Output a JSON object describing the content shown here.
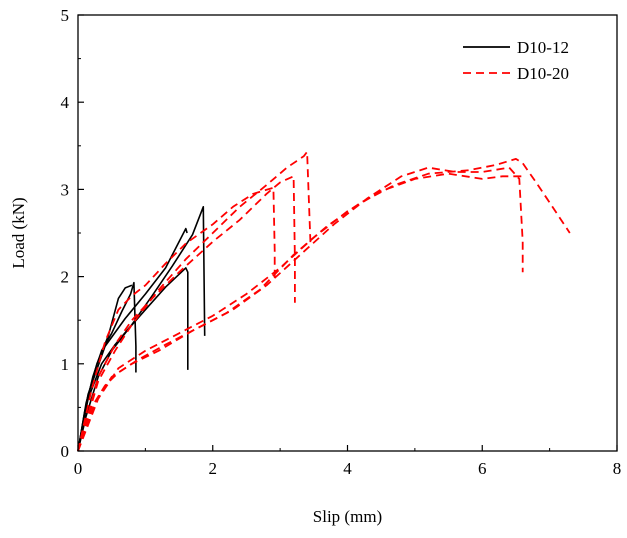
{
  "chart_data": {
    "type": "line",
    "title": "",
    "xlabel": "Slip (mm)",
    "ylabel": "Load (kN)",
    "xlim": [
      0,
      8
    ],
    "ylim": [
      0,
      5
    ],
    "xticks": [
      0,
      2,
      4,
      6,
      8
    ],
    "yticks": [
      0,
      1,
      2,
      3,
      4,
      5
    ],
    "grid": false,
    "legend_position": "top-right",
    "series": [
      {
        "name": "D10-12",
        "color": "#000000",
        "dash": "solid",
        "curves": [
          [
            [
              0,
              0
            ],
            [
              0.1,
              0.45
            ],
            [
              0.22,
              0.85
            ],
            [
              0.35,
              1.15
            ],
            [
              0.5,
              1.35
            ],
            [
              0.65,
              1.6
            ],
            [
              0.78,
              1.8
            ],
            [
              0.83,
              1.93
            ],
            [
              0.86,
              1.2
            ],
            [
              0.86,
              0.9
            ]
          ],
          [
            [
              0,
              0
            ],
            [
              0.12,
              0.55
            ],
            [
              0.28,
              1.0
            ],
            [
              0.45,
              1.32
            ],
            [
              0.6,
              1.75
            ],
            [
              0.7,
              1.87
            ],
            [
              0.8,
              1.9
            ]
          ],
          [
            [
              0,
              0
            ],
            [
              0.12,
              0.4
            ],
            [
              0.3,
              0.85
            ],
            [
              0.5,
              1.15
            ],
            [
              0.75,
              1.4
            ],
            [
              1.0,
              1.62
            ],
            [
              1.3,
              1.88
            ],
            [
              1.6,
              2.1
            ],
            [
              1.63,
              2.05
            ],
            [
              1.63,
              0.93
            ]
          ],
          [
            [
              0,
              0
            ],
            [
              0.15,
              0.6
            ],
            [
              0.35,
              1.0
            ],
            [
              0.55,
              1.22
            ],
            [
              0.8,
              1.45
            ],
            [
              1.1,
              1.78
            ],
            [
              1.4,
              2.12
            ],
            [
              1.7,
              2.48
            ],
            [
              1.86,
              2.8
            ],
            [
              1.88,
              1.32
            ]
          ],
          [
            [
              0,
              0
            ],
            [
              0.15,
              0.65
            ],
            [
              0.4,
              1.2
            ],
            [
              0.7,
              1.52
            ],
            [
              1.0,
              1.8
            ],
            [
              1.3,
              2.1
            ],
            [
              1.6,
              2.55
            ],
            [
              1.62,
              2.5
            ]
          ]
        ]
      },
      {
        "name": "D10-20",
        "color": "#ff0000",
        "dash": "dashed",
        "curves": [
          [
            [
              0,
              0
            ],
            [
              0.2,
              0.7
            ],
            [
              0.4,
              1.25
            ],
            [
              0.6,
              1.62
            ],
            [
              0.8,
              1.78
            ],
            [
              1.0,
              1.9
            ],
            [
              1.3,
              2.15
            ],
            [
              1.6,
              2.38
            ],
            [
              2.0,
              2.6
            ],
            [
              2.3,
              2.8
            ],
            [
              2.6,
              2.95
            ],
            [
              2.9,
              3.02
            ],
            [
              2.92,
              2.3
            ],
            [
              2.92,
              1.98
            ]
          ],
          [
            [
              0,
              0
            ],
            [
              0.3,
              0.85
            ],
            [
              0.55,
              1.22
            ],
            [
              0.8,
              1.5
            ],
            [
              1.1,
              1.75
            ],
            [
              1.5,
              2.05
            ],
            [
              2.0,
              2.4
            ],
            [
              2.4,
              2.65
            ],
            [
              2.8,
              2.95
            ],
            [
              3.0,
              3.08
            ],
            [
              3.2,
              3.15
            ],
            [
              3.22,
              2.2
            ],
            [
              3.22,
              1.7
            ]
          ],
          [
            [
              0,
              0
            ],
            [
              0.3,
              0.8
            ],
            [
              0.55,
              1.15
            ],
            [
              0.8,
              1.45
            ],
            [
              1.2,
              1.85
            ],
            [
              1.6,
              2.2
            ],
            [
              2.0,
              2.5
            ],
            [
              2.4,
              2.8
            ],
            [
              2.8,
              3.05
            ],
            [
              3.1,
              3.25
            ],
            [
              3.35,
              3.38
            ],
            [
              3.4,
              3.43
            ],
            [
              3.45,
              2.4
            ],
            [
              3.45,
              2.35
            ]
          ],
          [
            [
              0,
              0
            ],
            [
              0.2,
              0.5
            ],
            [
              0.4,
              0.75
            ],
            [
              0.6,
              0.9
            ],
            [
              0.9,
              1.05
            ],
            [
              1.3,
              1.22
            ],
            [
              1.8,
              1.42
            ],
            [
              2.3,
              1.62
            ],
            [
              2.8,
              1.9
            ],
            [
              3.3,
              2.25
            ],
            [
              3.8,
              2.6
            ],
            [
              4.3,
              2.9
            ],
            [
              4.8,
              3.15
            ],
            [
              5.2,
              3.25
            ],
            [
              5.6,
              3.2
            ],
            [
              6.0,
              3.2
            ],
            [
              6.4,
              3.25
            ],
            [
              6.55,
              3.12
            ],
            [
              6.6,
              2.4
            ],
            [
              6.6,
              2.05
            ]
          ],
          [
            [
              0,
              0
            ],
            [
              0.25,
              0.55
            ],
            [
              0.5,
              0.85
            ],
            [
              0.8,
              1.0
            ],
            [
              1.2,
              1.15
            ],
            [
              1.7,
              1.38
            ],
            [
              2.2,
              1.58
            ],
            [
              2.7,
              1.85
            ],
            [
              3.2,
              2.25
            ],
            [
              3.7,
              2.58
            ],
            [
              4.2,
              2.85
            ],
            [
              4.7,
              3.05
            ],
            [
              5.2,
              3.18
            ],
            [
              5.8,
              3.22
            ],
            [
              6.2,
              3.28
            ],
            [
              6.5,
              3.35
            ],
            [
              6.6,
              3.3
            ],
            [
              6.8,
              3.08
            ],
            [
              7.0,
              2.85
            ],
            [
              7.3,
              2.5
            ]
          ],
          [
            [
              0,
              0
            ],
            [
              0.3,
              0.6
            ],
            [
              0.6,
              0.95
            ],
            [
              1.0,
              1.15
            ],
            [
              1.5,
              1.35
            ],
            [
              2.0,
              1.55
            ],
            [
              2.5,
              1.8
            ],
            [
              3.0,
              2.1
            ],
            [
              3.5,
              2.45
            ],
            [
              4.0,
              2.75
            ],
            [
              4.5,
              2.98
            ],
            [
              5.0,
              3.12
            ],
            [
              5.5,
              3.18
            ],
            [
              6.0,
              3.12
            ],
            [
              6.3,
              3.15
            ],
            [
              6.6,
              3.15
            ]
          ]
        ]
      }
    ]
  }
}
